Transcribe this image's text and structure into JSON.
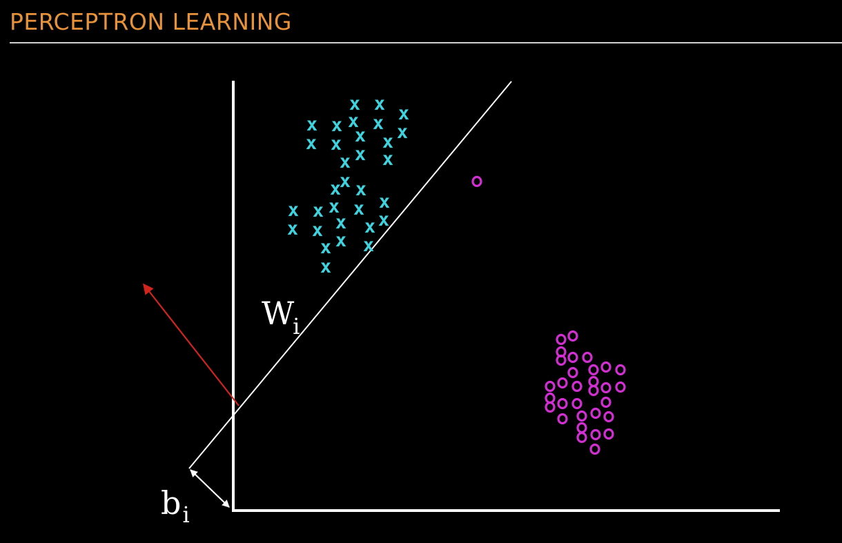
{
  "title": "PERCEPTRON LEARNING",
  "colors": {
    "title": "#e8923a",
    "rule": "#cfcfcf",
    "axis": "#ffffff",
    "boundary": "#ffffff",
    "class_x": "#3fd3df",
    "class_o": "#d22fd2",
    "weight_vector": "#d1241c",
    "bias_arrow": "#ffffff"
  },
  "labels": {
    "weight_base": "W",
    "weight_sub": "i",
    "bias_base": "b",
    "bias_sub": "i"
  },
  "classes": {
    "x": {
      "glyph": "x"
    },
    "o": {
      "glyph": "o"
    }
  }
}
